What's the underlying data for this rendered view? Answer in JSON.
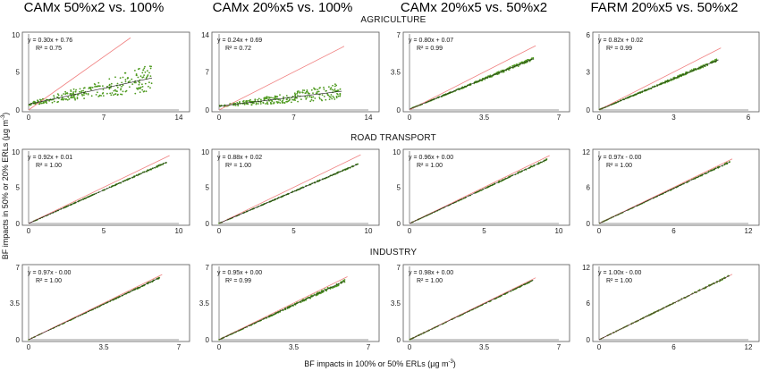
{
  "column_titles": [
    "CAMx 50%x2 vs. 100%",
    "CAMx 20%x5 vs. 100%",
    "CAMx 20%x5 vs. 50%x2",
    "FARM 20%x5 vs. 50%x2"
  ],
  "row_titles": [
    "AGRICULTURE",
    "ROAD TRANSPORT",
    "INDUSTRY"
  ],
  "xlabel": "BF impacts in 100% or 50% ERLs (µg m",
  "xlabel_sup": "-3",
  "xlabel_end": ")",
  "ylabel": "BF impacts in 50% or 20% ERLs (µg m",
  "ylabel_sup": "-3",
  "ylabel_end": ")",
  "colors": {
    "points": "#4e9a1f",
    "identity_line": "#f08080",
    "fit_line": "#1a1a1a"
  },
  "chart_data": [
    {
      "type": "scatter",
      "row": 0,
      "col": 0,
      "xlim": [
        0,
        14
      ],
      "ylim": [
        0,
        10
      ],
      "xticks": [
        "0",
        "7",
        "14"
      ],
      "yticks": [
        "0",
        "5",
        "10"
      ],
      "equation": "y = 0.30x + 0.76",
      "r2": "R² = 0.75",
      "slope": 0.3,
      "intercept": 0.76,
      "xmax_data": 11.5
    },
    {
      "type": "scatter",
      "row": 0,
      "col": 1,
      "xlim": [
        0,
        14
      ],
      "ylim": [
        0,
        14
      ],
      "xticks": [
        "0",
        "7",
        "14"
      ],
      "yticks": [
        "0",
        "7",
        "14"
      ],
      "equation": "y = 0.24x + 0.69",
      "r2": "R² = 0.72",
      "slope": 0.24,
      "intercept": 0.69,
      "xmax_data": 11.5
    },
    {
      "type": "scatter",
      "row": 0,
      "col": 2,
      "xlim": [
        0,
        7
      ],
      "ylim": [
        0,
        7
      ],
      "xticks": [
        "0",
        "3.5",
        "7"
      ],
      "yticks": [
        "0",
        "3.5",
        "7"
      ],
      "equation": "y = 0.80x + 0.07",
      "r2": "R² = 0.99",
      "slope": 0.8,
      "intercept": 0.07,
      "xmax_data": 5.8
    },
    {
      "type": "scatter",
      "row": 0,
      "col": 3,
      "xlim": [
        0,
        6
      ],
      "ylim": [
        0,
        6
      ],
      "xticks": [
        "0",
        "3",
        "6"
      ],
      "yticks": [
        "0",
        "3",
        "6"
      ],
      "equation": "y = 0.82x + 0.02",
      "r2": "R² = 0.99",
      "slope": 0.82,
      "intercept": 0.02,
      "xmax_data": 4.8
    },
    {
      "type": "scatter",
      "row": 1,
      "col": 0,
      "xlim": [
        0,
        10
      ],
      "ylim": [
        0,
        10
      ],
      "xticks": [
        "0",
        "5",
        "10"
      ],
      "yticks": [
        "0",
        "5",
        "10"
      ],
      "equation": "y = 0.92x + 0.01",
      "r2": "R² = 1.00",
      "slope": 0.92,
      "intercept": 0.01,
      "xmax_data": 9.2
    },
    {
      "type": "scatter",
      "row": 1,
      "col": 1,
      "xlim": [
        0,
        10
      ],
      "ylim": [
        0,
        10
      ],
      "xticks": [
        "0",
        "5",
        "10"
      ],
      "yticks": [
        "0",
        "5",
        "10"
      ],
      "equation": "y = 0.88x + 0.02",
      "r2": "R² = 1.00",
      "slope": 0.88,
      "intercept": 0.02,
      "xmax_data": 9.3
    },
    {
      "type": "scatter",
      "row": 1,
      "col": 2,
      "xlim": [
        0,
        10
      ],
      "ylim": [
        0,
        10
      ],
      "xticks": [
        "0",
        "5",
        "10"
      ],
      "yticks": [
        "0",
        "5",
        "10"
      ],
      "equation": "y = 0.96x + 0.00",
      "r2": "R² = 1.00",
      "slope": 0.96,
      "intercept": 0.0,
      "xmax_data": 9.2
    },
    {
      "type": "scatter",
      "row": 1,
      "col": 3,
      "xlim": [
        0,
        12
      ],
      "ylim": [
        0,
        12
      ],
      "xticks": [
        "0",
        "6",
        "12"
      ],
      "yticks": [
        "0",
        "6",
        "12"
      ],
      "equation": "y = 0.97x - 0.00",
      "r2": "R² = 1.00",
      "slope": 0.97,
      "intercept": 0.0,
      "xmax_data": 10.5
    },
    {
      "type": "scatter",
      "row": 2,
      "col": 0,
      "xlim": [
        0,
        7
      ],
      "ylim": [
        0,
        7
      ],
      "xticks": [
        "0",
        "3.5",
        "7"
      ],
      "yticks": [
        "0",
        "3.5",
        "7"
      ],
      "equation": "y = 0.97x - 0.00",
      "r2": "R² = 1.00",
      "slope": 0.97,
      "intercept": 0.0,
      "xmax_data": 6.1
    },
    {
      "type": "scatter",
      "row": 2,
      "col": 1,
      "xlim": [
        0,
        7
      ],
      "ylim": [
        0,
        7
      ],
      "xticks": [
        "0",
        "3.5",
        "7"
      ],
      "yticks": [
        "0",
        "3.5",
        "7"
      ],
      "equation": "y = 0.95x + 0.00",
      "r2": "R² = 0.99",
      "slope": 0.95,
      "intercept": 0.0,
      "xmax_data": 5.9
    },
    {
      "type": "scatter",
      "row": 2,
      "col": 2,
      "xlim": [
        0,
        7
      ],
      "ylim": [
        0,
        7
      ],
      "xticks": [
        "0",
        "3.5",
        "7"
      ],
      "yticks": [
        "0",
        "3.5",
        "7"
      ],
      "equation": "y = 0.98x + 0.00",
      "r2": "R² = 1.00",
      "slope": 0.98,
      "intercept": 0.0,
      "xmax_data": 5.8
    },
    {
      "type": "scatter",
      "row": 2,
      "col": 3,
      "xlim": [
        0,
        12
      ],
      "ylim": [
        0,
        12
      ],
      "xticks": [
        "0",
        "6",
        "12"
      ],
      "yticks": [
        "0",
        "6",
        "12"
      ],
      "equation": "y = 1.00x - 0.00",
      "r2": "R² = 1.00",
      "slope": 1.0,
      "intercept": 0.0,
      "xmax_data": 10.5
    }
  ]
}
